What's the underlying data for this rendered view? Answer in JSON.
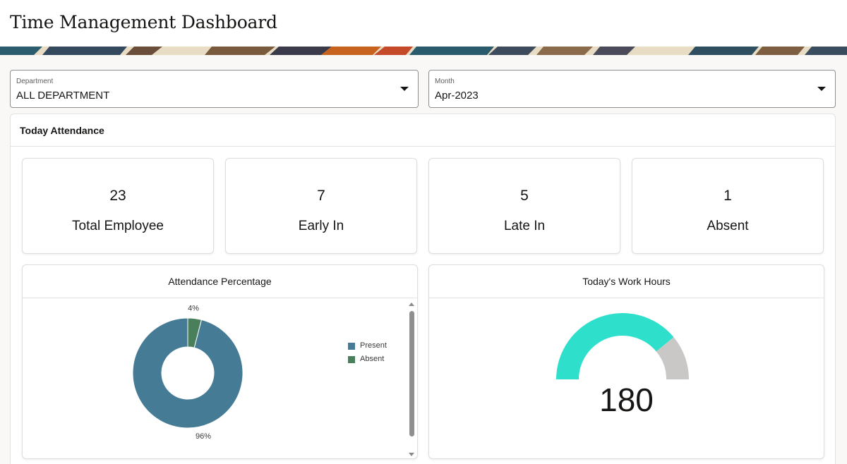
{
  "header": {
    "title": "Time Management Dashboard"
  },
  "filters": {
    "department": {
      "label": "Department",
      "value": "ALL DEPARTMENT"
    },
    "month": {
      "label": "Month",
      "value": "Apr-2023"
    }
  },
  "today_attendance": {
    "title": "Today Attendance",
    "stats": [
      {
        "value": "23",
        "label": "Total Employee"
      },
      {
        "value": "7",
        "label": "Early In"
      },
      {
        "value": "5",
        "label": "Late In"
      },
      {
        "value": "1",
        "label": "Absent"
      }
    ]
  },
  "attendance_percentage": {
    "title": "Attendance Percentage",
    "legend": [
      {
        "label": "Present",
        "color": "#467b96"
      },
      {
        "label": "Absent",
        "color": "#4a7f5b"
      }
    ]
  },
  "work_hours": {
    "title": "Today's Work Hours",
    "value": "180",
    "fill_fraction": 0.78,
    "colors": {
      "filled": "#2ee0cc",
      "remaining": "#c9c8c7"
    }
  },
  "chart_data": {
    "type": "pie",
    "donut": true,
    "categories": [
      "Present",
      "Absent"
    ],
    "values": [
      96,
      4
    ],
    "labels": [
      "96%",
      "4%"
    ],
    "colors": [
      "#467b96",
      "#4a7f5b"
    ],
    "legend_position": "right"
  }
}
